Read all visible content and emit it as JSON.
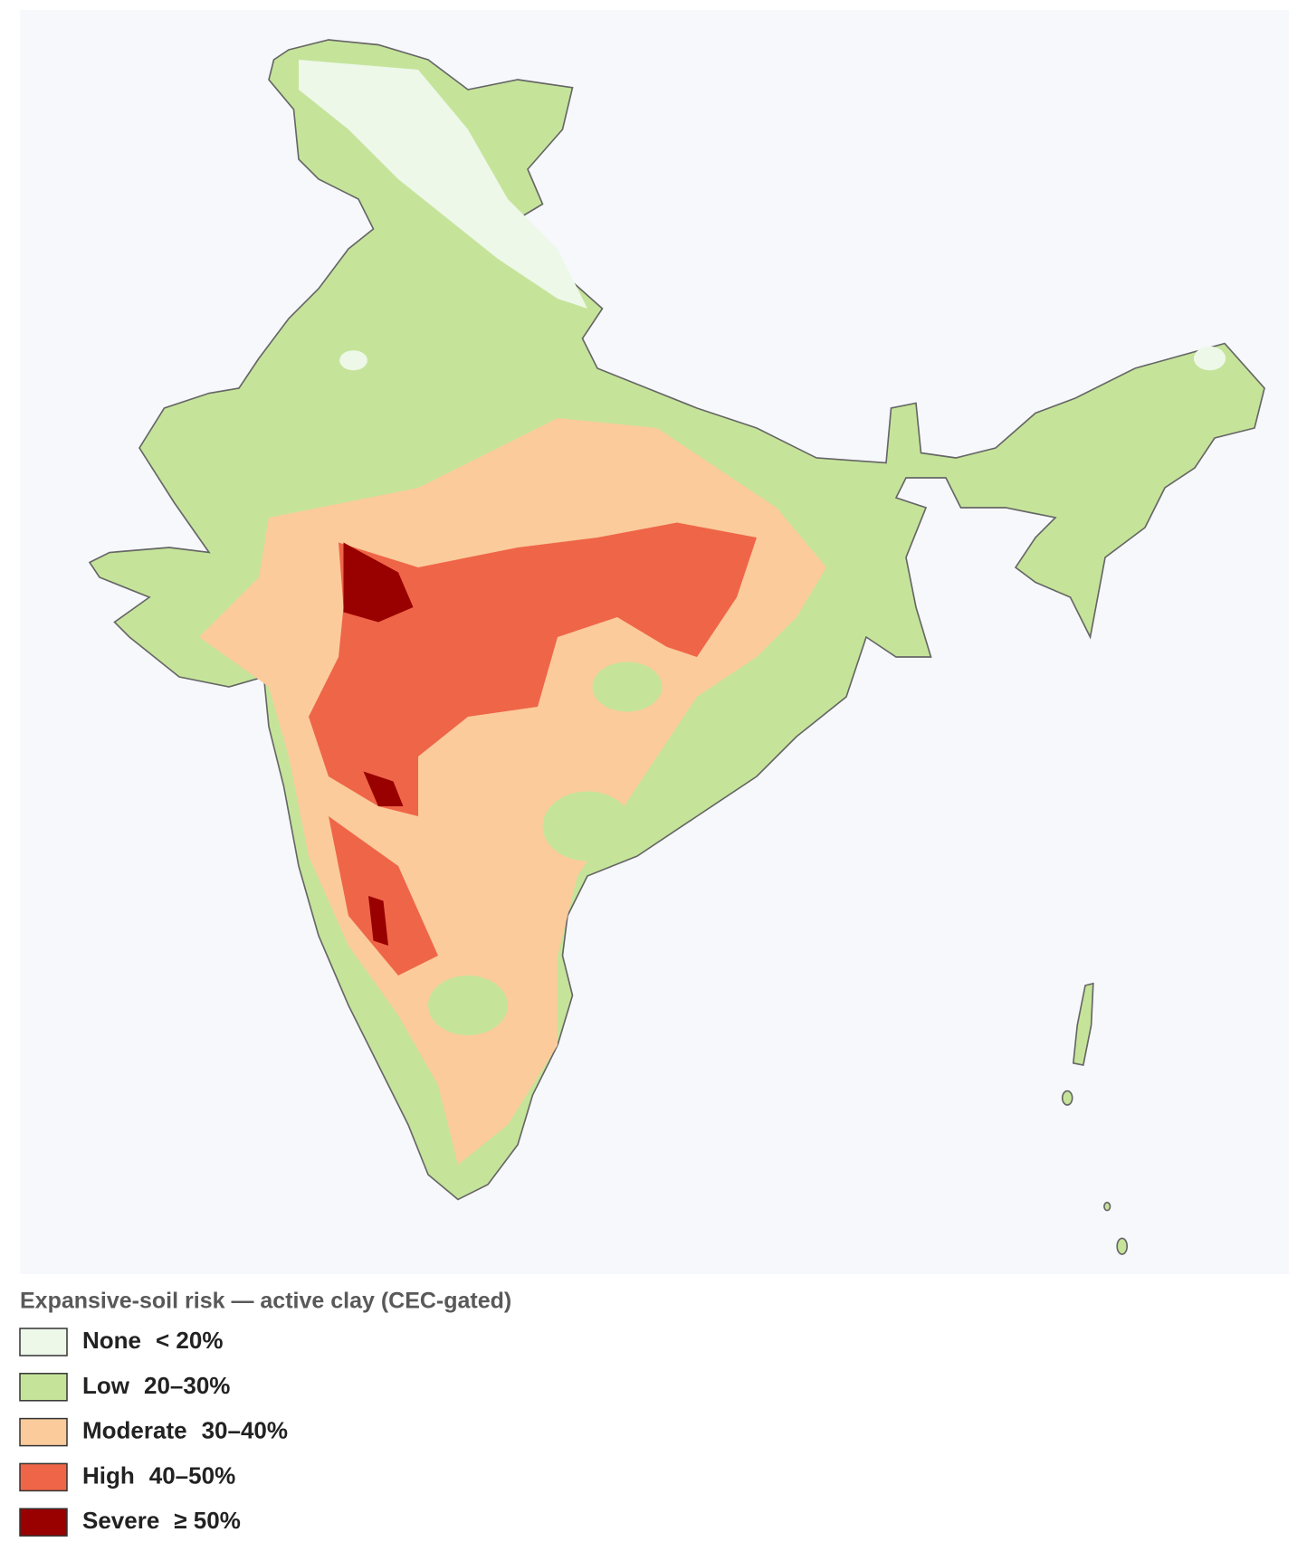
{
  "legend": {
    "title": "Expansive-soil risk — active clay (CEC-gated)",
    "items": [
      {
        "name": "None",
        "range": "< 20%",
        "color": "#edf8e9"
      },
      {
        "name": "Low",
        "range": "20–30%",
        "color": "#c5e49a"
      },
      {
        "name": "Moderate",
        "range": "30–40%",
        "color": "#fbcb9b"
      },
      {
        "name": "High",
        "range": "40–50%",
        "color": "#ef6548"
      },
      {
        "name": "Severe",
        "range": "≥ 50%",
        "color": "#990000"
      }
    ]
  }
}
